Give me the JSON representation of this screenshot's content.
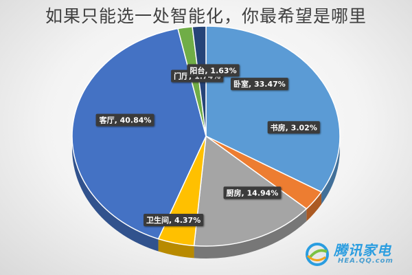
{
  "title": "如果只能选一处智能化，你最希望是哪里",
  "chart_data": {
    "type": "pie",
    "title": "如果只能选一处智能化，你最希望是哪里",
    "slices": [
      {
        "label": "卧室, 33.47%",
        "name": "卧室",
        "value": 33.47,
        "color": "#5b9bd5"
      },
      {
        "label": "书房, 3.02%",
        "name": "书房",
        "value": 3.02,
        "color": "#ed7d31"
      },
      {
        "label": "厨房, 14.94%",
        "name": "厨房",
        "value": 14.94,
        "color": "#a5a5a5"
      },
      {
        "label": "卫生间, 4.37%",
        "name": "卫生间",
        "value": 4.37,
        "color": "#ffc000"
      },
      {
        "label": "客厅, 40.84%",
        "name": "客厅",
        "value": 40.84,
        "color": "#4472c4"
      },
      {
        "label": "门厅, 1.74%",
        "name": "门厅",
        "value": 1.74,
        "color": "#70ad47"
      },
      {
        "label": "阳台, 1.63%",
        "name": "阳台",
        "value": 1.63,
        "color": "#264478"
      }
    ],
    "start": "12 o'clock",
    "direction": "clockwise",
    "style": "3d-tilted"
  },
  "watermark": {
    "brand": "腾讯家电",
    "url": "HEA.QQ.com"
  }
}
